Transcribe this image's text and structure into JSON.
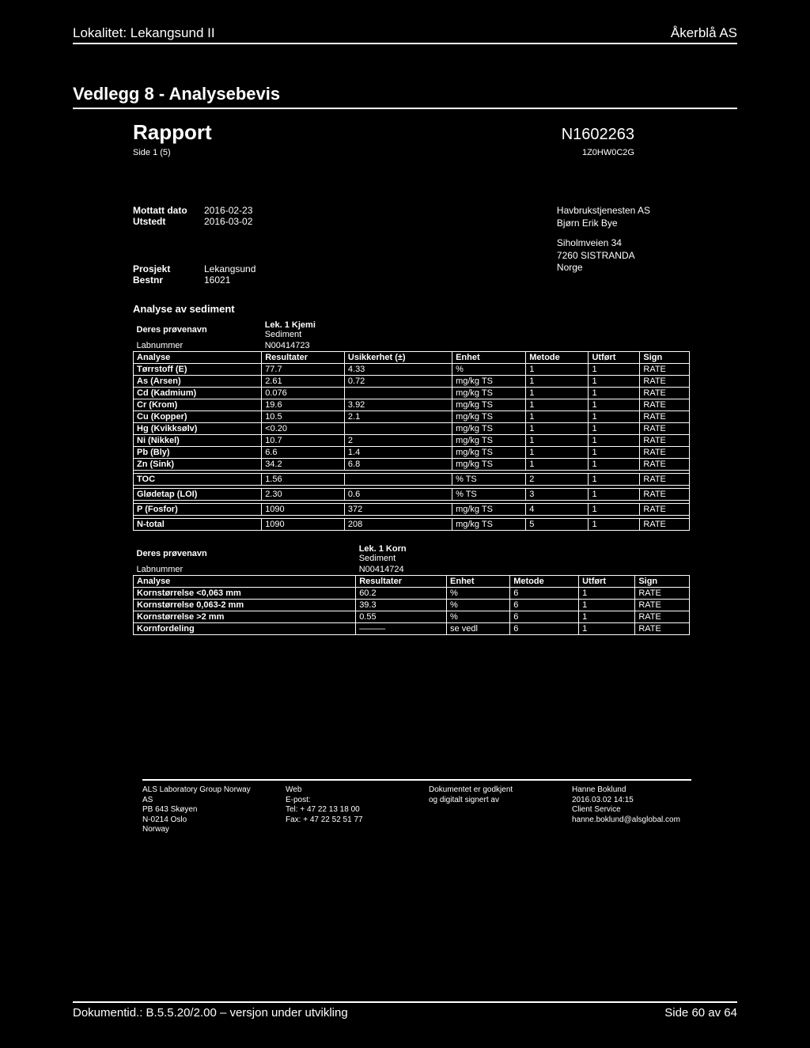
{
  "header": {
    "left": "Lokalitet: Lekangsund II",
    "right": "Åkerblå AS"
  },
  "vedlegg": "Vedlegg 8 - Analysebevis",
  "rapport": {
    "title": "Rapport",
    "id": "N1602263",
    "side": "Side 1 (5)",
    "code": "1Z0HW0C2G"
  },
  "meta": {
    "mottatt_label": "Mottatt dato",
    "mottatt": "2016-02-23",
    "utstedt_label": "Utstedt",
    "utstedt": "2016-03-02",
    "prosjekt_label": "Prosjekt",
    "prosjekt": "Lekangsund",
    "bestnr_label": "Bestnr",
    "bestnr": "16021",
    "recipient": {
      "l1": "Havbrukstjenesten AS",
      "l2": "Bjørn Erik Bye",
      "l3": "Siholmveien 34",
      "l4": "7260 SISTRANDA",
      "l5": "Norge"
    }
  },
  "analyse_title": "Analyse av sediment",
  "t1": {
    "sample_label": "Deres prøvenavn",
    "sample": "Lek. 1 Kjemi",
    "sample2": "Sediment",
    "lab_label": "Labnummer",
    "lab": "N00414723",
    "headers": [
      "Analyse",
      "Resultater",
      "Usikkerhet (±)",
      "Enhet",
      "Metode",
      "Utført",
      "Sign"
    ],
    "rows": [
      [
        "Tørrstoff (E)",
        "77.7",
        "4.33",
        "%",
        "1",
        "1",
        "RATE"
      ],
      [
        "As (Arsen)",
        "2.61",
        "0.72",
        "mg/kg TS",
        "1",
        "1",
        "RATE"
      ],
      [
        "Cd (Kadmium)",
        "0.076",
        "",
        "mg/kg TS",
        "1",
        "1",
        "RATE"
      ],
      [
        "Cr (Krom)",
        "19.6",
        "3.92",
        "mg/kg TS",
        "1",
        "1",
        "RATE"
      ],
      [
        "Cu (Kopper)",
        "10.5",
        "2.1",
        "mg/kg TS",
        "1",
        "1",
        "RATE"
      ],
      [
        "Hg (Kvikksølv)",
        "<0.20",
        "",
        "mg/kg TS",
        "1",
        "1",
        "RATE"
      ],
      [
        "Ni (Nikkel)",
        "10.7",
        "2",
        "mg/kg TS",
        "1",
        "1",
        "RATE"
      ],
      [
        "Pb (Bly)",
        "6.6",
        "1.4",
        "mg/kg TS",
        "1",
        "1",
        "RATE"
      ],
      [
        "Zn (Sink)",
        "34.2",
        "6.8",
        "mg/kg TS",
        "1",
        "1",
        "RATE"
      ]
    ],
    "extra": [
      [
        "TOC",
        "1.56",
        "",
        "% TS",
        "2",
        "1",
        "RATE"
      ],
      [
        "Glødetap (LOI)",
        "2.30",
        "0.6",
        "% TS",
        "3",
        "1",
        "RATE"
      ],
      [
        "P (Fosfor)",
        "1090",
        "372",
        "mg/kg TS",
        "4",
        "1",
        "RATE"
      ],
      [
        "N-total",
        "1090",
        "208",
        "mg/kg TS",
        "5",
        "1",
        "RATE"
      ]
    ]
  },
  "t2": {
    "sample_label": "Deres prøvenavn",
    "sample": "Lek. 1 Korn",
    "sample2": "Sediment",
    "lab_label": "Labnummer",
    "lab": "N00414724",
    "headers": [
      "Analyse",
      "Resultater",
      "Enhet",
      "Metode",
      "Utført",
      "Sign"
    ],
    "rows": [
      [
        "Kornstørrelse <0,063 mm",
        "60.2",
        "%",
        "6",
        "1",
        "RATE"
      ],
      [
        "Kornstørrelse 0,063-2 mm",
        "39.3",
        "%",
        "6",
        "1",
        "RATE"
      ],
      [
        "Kornstørrelse >2 mm",
        "0.55",
        "%",
        "6",
        "1",
        "RATE"
      ],
      [
        "Kornfordeling",
        "———",
        "se vedl",
        "6",
        "1",
        "RATE"
      ]
    ]
  },
  "footer": {
    "c1": {
      "l1": "ALS Laboratory Group Norway AS",
      "l2": "PB 643 Skøyen",
      "l3": "N-0214 Oslo",
      "l4": "Norway"
    },
    "c2": {
      "l1": "Web",
      "l2": "E-post:",
      "l3": "Tel: + 47 22 13 18 00",
      "l4": "Fax: + 47 22 52 51 77"
    },
    "c3": {
      "l1": "Dokumentet er godkjent",
      "l2": "og digitalt signert av"
    },
    "c4": {
      "l1": "Hanne Boklund",
      "l2": "2016.03.02 14:15",
      "l3": "Client Service",
      "l4": "hanne.boklund@alsglobal.com"
    }
  },
  "pagefoot": {
    "left": "Dokumentid.: B.5.5.20/2.00 – versjon under utvikling",
    "right": "Side 60 av 64"
  }
}
